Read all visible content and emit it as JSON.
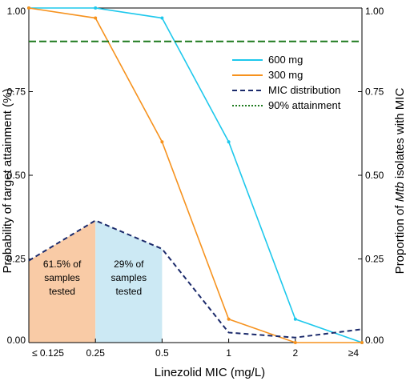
{
  "chart_data": {
    "type": "line",
    "xlabel": "Linezolid MIC (mg/L)",
    "ylabel_left": "Probability of target attainment (%)",
    "ylabel_right_parts": [
      "Proportion of ",
      "Mtb",
      " isolates with MIC"
    ],
    "categories": [
      "≤ 0.125",
      "0.25",
      "0.5",
      "1",
      "2",
      "≥4"
    ],
    "ylim": [
      0,
      1
    ],
    "yticks": [
      "0.00",
      "0.25",
      "0.50",
      "0.75",
      "1.00"
    ],
    "grid": false,
    "legend_position": "upper-right",
    "series": [
      {
        "name": "600 mg",
        "color": "#1ec8ec",
        "style": "solid",
        "markers": true,
        "values": [
          1.0,
          1.0,
          0.97,
          0.6,
          0.07,
          0.0
        ]
      },
      {
        "name": "300 mg",
        "color": "#f6921e",
        "style": "solid",
        "markers": true,
        "values": [
          1.0,
          0.97,
          0.6,
          0.07,
          0.0,
          0.0
        ]
      },
      {
        "name": "MIC distribution",
        "color": "#1b2a6b",
        "style": "dashed",
        "markers": false,
        "values": [
          0.245,
          0.365,
          0.28,
          0.03,
          0.015,
          0.04
        ]
      },
      {
        "name": "90% attainment",
        "color": "#1e7a1e",
        "style": "dotted",
        "markers": false,
        "values": [
          0.9,
          0.9,
          0.9,
          0.9,
          0.9,
          0.9
        ]
      }
    ],
    "shaded_regions": [
      {
        "from_index": 0,
        "to_index": 1,
        "color": "#f9cba6",
        "label_lines": [
          "61.5% of",
          "samples",
          "tested"
        ]
      },
      {
        "from_index": 1,
        "to_index": 2,
        "color": "#cce9f4",
        "label_lines": [
          "29% of",
          "samples",
          "tested"
        ]
      }
    ]
  }
}
